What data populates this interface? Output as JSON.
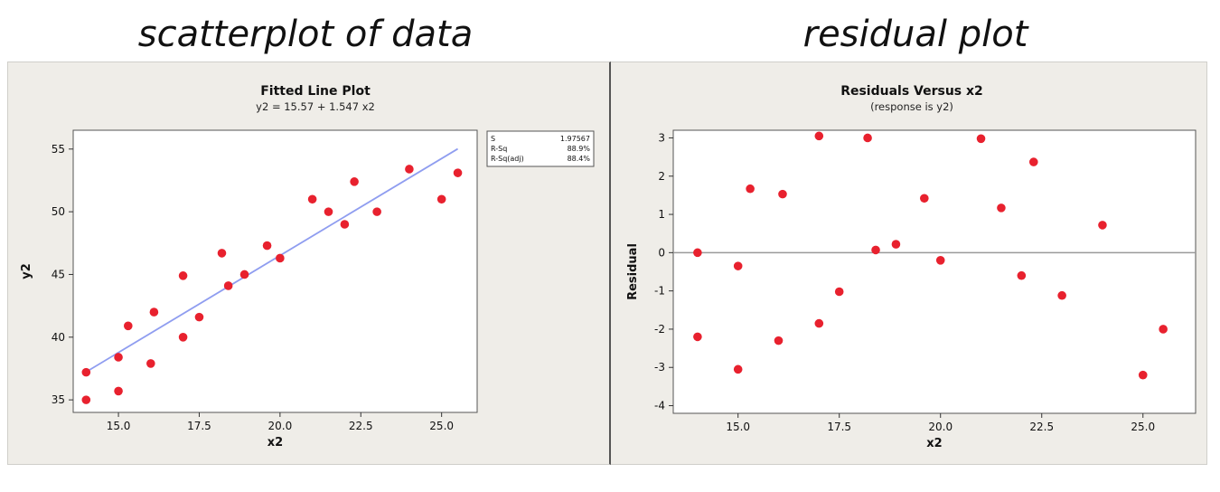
{
  "headings": {
    "left": "scatterplot of data",
    "right": "residual plot"
  },
  "colors": {
    "point": "#e8212e",
    "fit_line": "#8f9df0",
    "zero_line": "#9a9a9a",
    "panel_bg": "#efede8",
    "plot_bg": "#ffffff"
  },
  "chart_data": [
    {
      "type": "scatter",
      "title": "Fitted Line Plot",
      "subtitle": "y2 =  15.57 + 1.547 x2",
      "xlabel": "x2",
      "ylabel": "y2",
      "xlim": [
        13.6,
        26.1
      ],
      "ylim": [
        34.0,
        56.5
      ],
      "xticks": [
        "15.0",
        "17.5",
        "20.0",
        "22.5",
        "25.0"
      ],
      "yticks": [
        "35",
        "40",
        "45",
        "50",
        "55"
      ],
      "fit_line": {
        "intercept": 15.57,
        "slope": 1.547,
        "x_range": [
          14.0,
          25.5
        ]
      },
      "stats": [
        {
          "label": "S",
          "value": "1.97567"
        },
        {
          "label": "R-Sq",
          "value": "88.9%"
        },
        {
          "label": "R-Sq(adj)",
          "value": "88.4%"
        }
      ],
      "points": [
        [
          14.0,
          37.2
        ],
        [
          14.0,
          35.0
        ],
        [
          15.0,
          38.4
        ],
        [
          15.0,
          35.7
        ],
        [
          15.3,
          40.9
        ],
        [
          16.0,
          37.9
        ],
        [
          16.1,
          42.0
        ],
        [
          17.0,
          44.9
        ],
        [
          17.0,
          40.0
        ],
        [
          17.5,
          41.6
        ],
        [
          18.2,
          46.7
        ],
        [
          18.4,
          44.1
        ],
        [
          18.9,
          45.0
        ],
        [
          19.6,
          47.3
        ],
        [
          20.0,
          46.3
        ],
        [
          21.0,
          51.0
        ],
        [
          21.5,
          50.0
        ],
        [
          22.0,
          49.0
        ],
        [
          22.3,
          52.4
        ],
        [
          23.0,
          50.0
        ],
        [
          24.0,
          53.4
        ],
        [
          25.0,
          51.0
        ],
        [
          25.5,
          53.1
        ]
      ]
    },
    {
      "type": "scatter",
      "title": "Residuals Versus x2",
      "subtitle": "(response is y2)",
      "xlabel": "x2",
      "ylabel": "Residual",
      "xlim": [
        13.4,
        26.3
      ],
      "ylim": [
        -4.2,
        3.2
      ],
      "xticks": [
        "15.0",
        "17.5",
        "20.0",
        "22.5",
        "25.0"
      ],
      "yticks": [
        "3",
        "2",
        "1",
        "0",
        "-1",
        "-2",
        "-3",
        "-4"
      ],
      "zero_line": 0,
      "points": [
        [
          14.0,
          0.0
        ],
        [
          14.0,
          -2.2
        ],
        [
          15.0,
          -0.35
        ],
        [
          15.0,
          -3.05
        ],
        [
          15.3,
          1.67
        ],
        [
          16.0,
          -2.3
        ],
        [
          16.1,
          1.53
        ],
        [
          17.0,
          3.05
        ],
        [
          17.0,
          -1.85
        ],
        [
          17.5,
          -1.02
        ],
        [
          18.2,
          3.0
        ],
        [
          18.4,
          0.07
        ],
        [
          18.9,
          0.22
        ],
        [
          19.6,
          1.42
        ],
        [
          20.0,
          -0.2
        ],
        [
          21.0,
          2.98
        ],
        [
          21.5,
          1.17
        ],
        [
          22.0,
          -0.6
        ],
        [
          22.3,
          2.37
        ],
        [
          23.0,
          -1.12
        ],
        [
          24.0,
          0.72
        ],
        [
          25.0,
          -3.2
        ],
        [
          25.5,
          -2.0
        ]
      ]
    }
  ]
}
